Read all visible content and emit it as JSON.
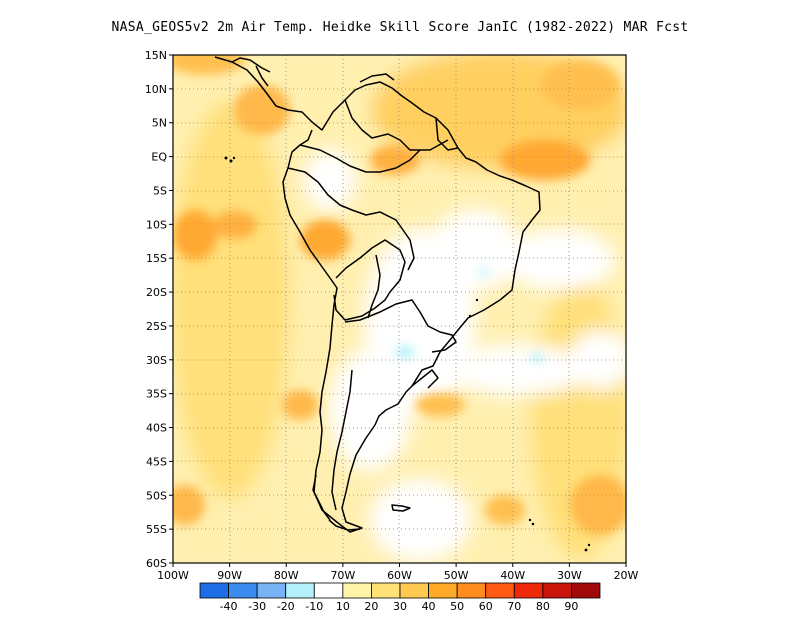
{
  "title": "NASA_GEOS5v2  2m Air Temp. Heidke Skill Score JanIC (1982-2022) MAR Fcst",
  "map": {
    "lat_labels": [
      "15N",
      "10N",
      "5N",
      "EQ",
      "5S",
      "10S",
      "15S",
      "20S",
      "25S",
      "30S",
      "35S",
      "40S",
      "45S",
      "50S",
      "55S",
      "60S"
    ],
    "lon_labels": [
      "100W",
      "90W",
      "80W",
      "70W",
      "60W",
      "50W",
      "40W",
      "30W",
      "20W"
    ],
    "extent": {
      "lon": [
        -100,
        -20
      ],
      "lat": [
        -60,
        15
      ]
    }
  },
  "colorbar": {
    "labels": [
      "-40",
      "-30",
      "-20",
      "-10",
      "10",
      "20",
      "30",
      "40",
      "50",
      "60",
      "70",
      "80",
      "90"
    ],
    "colors": [
      "#1e6ee6",
      "#3c8cf0",
      "#78b4f5",
      "#b4f0fa",
      "#ffffff",
      "#fff5aa",
      "#ffe178",
      "#ffc850",
      "#ffaa28",
      "#ff8c1e",
      "#ff5a14",
      "#f0280a",
      "#c8140a",
      "#a00a0a"
    ]
  }
}
